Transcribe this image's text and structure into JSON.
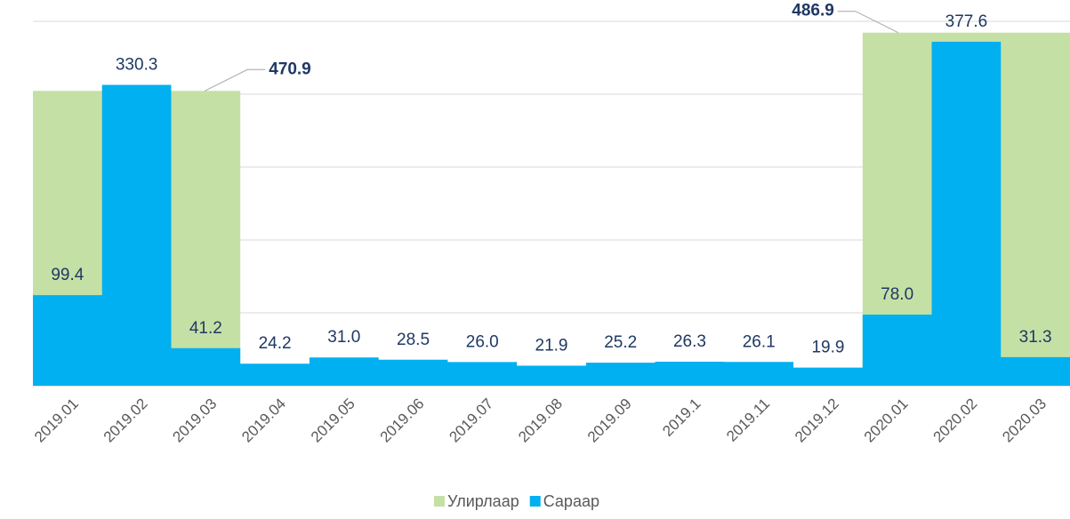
{
  "chart_data": {
    "type": "area",
    "categories": [
      "2019.01",
      "2019.02",
      "2019.03",
      "2019.04",
      "2019.05",
      "2019.06",
      "2019.07",
      "2019.08",
      "2019.09",
      "2019.1",
      "2019.11",
      "2019.12",
      "2020.01",
      "2020.02",
      "2020.03"
    ],
    "series": [
      {
        "name": "Улирлаар",
        "color": "#c5e0a5",
        "axis": "y2",
        "values": [
          470.9,
          470.9,
          470.9,
          null,
          null,
          null,
          null,
          null,
          null,
          null,
          null,
          null,
          486.9,
          486.9,
          486.9
        ]
      },
      {
        "name": "Сараар",
        "color": "#00b0f0",
        "values": [
          99.4,
          330.3,
          41.2,
          24.2,
          31.0,
          28.5,
          26.0,
          21.9,
          25.2,
          26.3,
          26.1,
          19.9,
          78.0,
          377.6,
          31.3
        ]
      }
    ],
    "ylim": [
      0,
      400
    ],
    "yticks": [
      0,
      80,
      160,
      240,
      320,
      400
    ],
    "y2lim": [
      390,
      490
    ],
    "grid": true,
    "legend": "bottom"
  }
}
